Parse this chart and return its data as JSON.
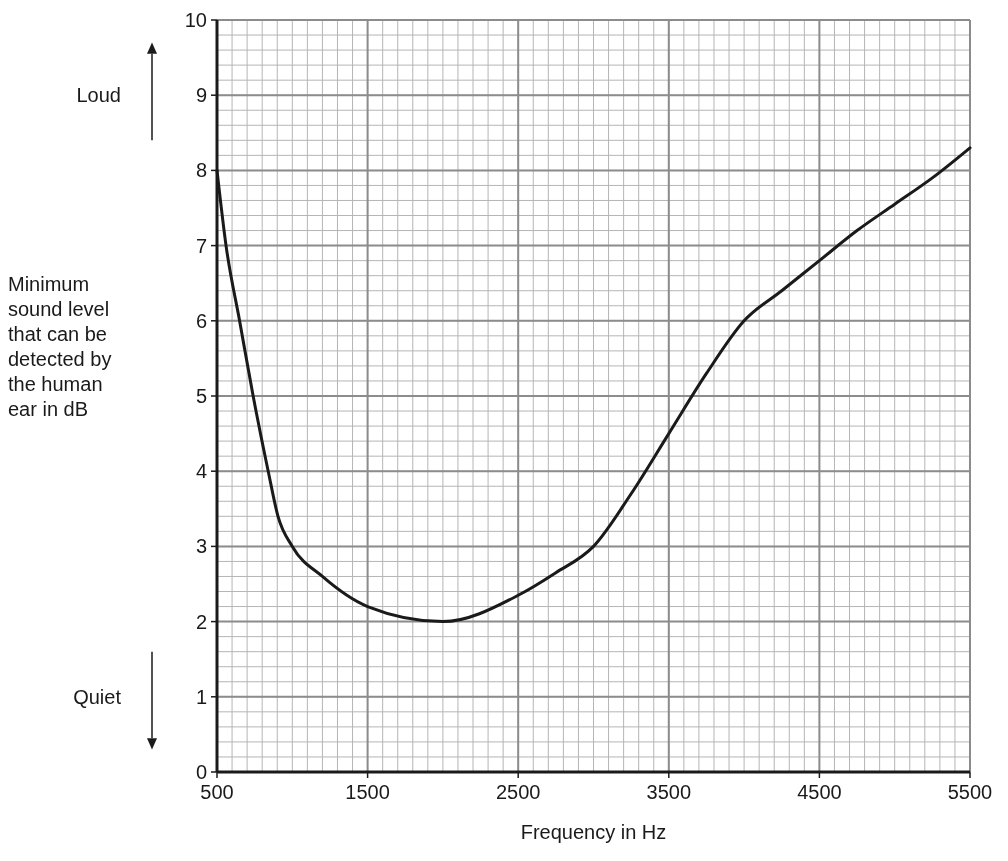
{
  "chart_data": {
    "type": "line",
    "xlabel": "Frequency in Hz",
    "ylabel": "Minimum sound level that can be detected by the human ear in dB",
    "annotations": [
      "Loud",
      "Quiet"
    ],
    "x": [
      500,
      560,
      650,
      740,
      840,
      905,
      1000,
      1200,
      1500,
      2000,
      2500,
      2750,
      3000,
      3250,
      3500,
      3750,
      4000,
      4250,
      4500,
      4750,
      5000,
      5250,
      5500
    ],
    "series": [
      {
        "color": "#1a1a1a",
        "values": [
          8,
          7,
          6,
          5,
          4,
          3.4,
          3,
          2.6,
          2.2,
          2,
          2.35,
          2.65,
          3,
          3.7,
          4.5,
          5.3,
          6,
          6.4,
          6.8,
          7.2,
          7.55,
          7.9,
          8.3
        ]
      }
    ],
    "xlim": [
      500,
      5500
    ],
    "xticks": [
      500,
      1500,
      2500,
      3500,
      4500,
      5500
    ],
    "ylim": [
      0,
      10
    ],
    "yticks": [
      0,
      1,
      2,
      3,
      4,
      5,
      6,
      7,
      8,
      9,
      10
    ],
    "grid": true,
    "marker": "none",
    "line_style": "solid"
  }
}
